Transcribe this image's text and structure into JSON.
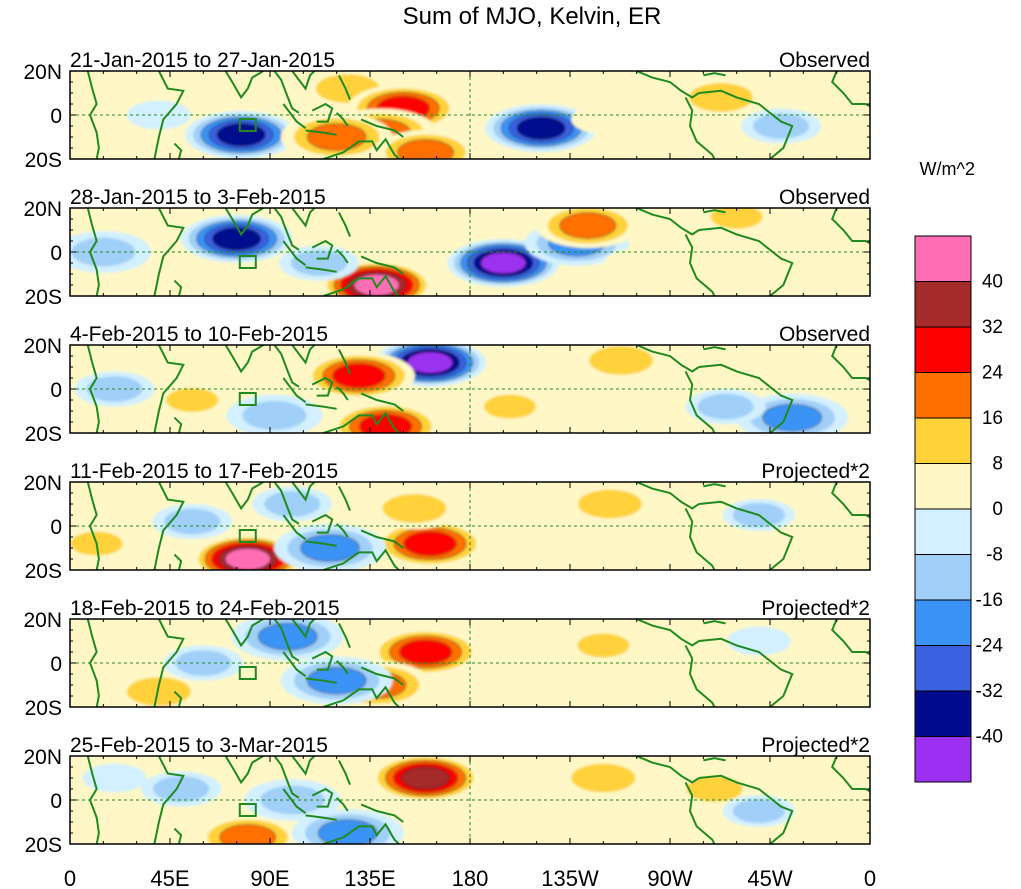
{
  "chart_data": {
    "type": "heatmap",
    "title": "Sum of MJO, Kelvin, ER",
    "x_tick_labels": [
      "0",
      "45E",
      "90E",
      "135E",
      "180",
      "135W",
      "90W",
      "45W",
      "0"
    ],
    "y_tick_labels": [
      "20N",
      "0",
      "20S"
    ],
    "xlim": [
      0,
      360
    ],
    "ylim": [
      -20,
      20
    ],
    "units": "W/m^2",
    "legend": {
      "position": "right",
      "levels": [
        "40",
        "32",
        "24",
        "16",
        "8",
        "0",
        "-8",
        "-16",
        "-24",
        "-32",
        "-40"
      ],
      "colors": [
        "#ff6eb4",
        "#a52a2a",
        "#ff0000",
        "#ff6f00",
        "#ffd23a",
        "#fff8c6",
        "#d2f0ff",
        "#a0cff8",
        "#3a93f5",
        "#3b61e0",
        "#000c8c",
        "#9b30f0"
      ]
    },
    "panels": [
      {
        "period": "21-Jan-2015 to 27-Jan-2015",
        "tag": "Observed",
        "anomalies": [
          {
            "lon": 77,
            "lat": -9,
            "value": -34
          },
          {
            "lon": 125,
            "lat": 12,
            "value": 16
          },
          {
            "lon": 150,
            "lat": 3,
            "value": 30
          },
          {
            "lon": 140,
            "lat": -8,
            "value": 24
          },
          {
            "lon": 120,
            "lat": -10,
            "value": 20
          },
          {
            "lon": 212,
            "lat": -6,
            "value": -36
          },
          {
            "lon": 240,
            "lat": -2,
            "value": 8
          },
          {
            "lon": 293,
            "lat": 8,
            "value": 16
          },
          {
            "lon": 160,
            "lat": -17,
            "value": 18
          },
          {
            "lon": 320,
            "lat": -5,
            "value": -12
          },
          {
            "lon": 40,
            "lat": 0,
            "value": -8
          }
        ]
      },
      {
        "period": "28-Jan-2015 to 3-Feb-2015",
        "tag": "Observed",
        "anomalies": [
          {
            "lon": 75,
            "lat": 6,
            "value": -34
          },
          {
            "lon": 15,
            "lat": 0,
            "value": -16
          },
          {
            "lon": 138,
            "lat": -15,
            "value": 42
          },
          {
            "lon": 195,
            "lat": -5,
            "value": -42
          },
          {
            "lon": 228,
            "lat": 4,
            "value": -18
          },
          {
            "lon": 233,
            "lat": 12,
            "value": 18
          },
          {
            "lon": 300,
            "lat": 16,
            "value": 10
          },
          {
            "lon": 255,
            "lat": -5,
            "value": 8
          },
          {
            "lon": 112,
            "lat": -5,
            "value": -12
          }
        ]
      },
      {
        "period": "4-Feb-2015 to 10-Feb-2015",
        "tag": "Observed",
        "anomalies": [
          {
            "lon": 162,
            "lat": 12,
            "value": -42
          },
          {
            "lon": 130,
            "lat": 6,
            "value": 28
          },
          {
            "lon": 142,
            "lat": -17,
            "value": 28
          },
          {
            "lon": 92,
            "lat": -12,
            "value": -16
          },
          {
            "lon": 55,
            "lat": -5,
            "value": 10
          },
          {
            "lon": 248,
            "lat": 13,
            "value": 16
          },
          {
            "lon": 325,
            "lat": -13,
            "value": -22
          },
          {
            "lon": 295,
            "lat": -8,
            "value": -12
          },
          {
            "lon": 20,
            "lat": 0,
            "value": -12
          },
          {
            "lon": 198,
            "lat": -8,
            "value": 10
          }
        ]
      },
      {
        "period": "11-Feb-2015 to 17-Feb-2015",
        "tag": "Projected*2",
        "anomalies": [
          {
            "lon": 80,
            "lat": -15,
            "value": 44
          },
          {
            "lon": 162,
            "lat": -8,
            "value": 30
          },
          {
            "lon": 155,
            "lat": 8,
            "value": 16
          },
          {
            "lon": 117,
            "lat": -10,
            "value": -24
          },
          {
            "lon": 55,
            "lat": 2,
            "value": -12
          },
          {
            "lon": 100,
            "lat": 10,
            "value": -12
          },
          {
            "lon": 243,
            "lat": 10,
            "value": 16
          },
          {
            "lon": 285,
            "lat": 0,
            "value": 8
          },
          {
            "lon": 310,
            "lat": 5,
            "value": -10
          },
          {
            "lon": 12,
            "lat": -8,
            "value": 10
          },
          {
            "lon": 205,
            "lat": -5,
            "value": 6
          }
        ]
      },
      {
        "period": "18-Feb-2015 to 24-Feb-2015",
        "tag": "Projected*2",
        "anomalies": [
          {
            "lon": 160,
            "lat": 5,
            "value": 30
          },
          {
            "lon": 138,
            "lat": -10,
            "value": 20
          },
          {
            "lon": 98,
            "lat": 12,
            "value": -20
          },
          {
            "lon": 120,
            "lat": -8,
            "value": -22
          },
          {
            "lon": 40,
            "lat": -13,
            "value": 16
          },
          {
            "lon": 60,
            "lat": 0,
            "value": -12
          },
          {
            "lon": 240,
            "lat": 8,
            "value": 10
          },
          {
            "lon": 285,
            "lat": 2,
            "value": 8
          },
          {
            "lon": 310,
            "lat": 10,
            "value": -8
          },
          {
            "lon": 215,
            "lat": -8,
            "value": 6
          }
        ]
      },
      {
        "period": "25-Feb-2015 to 3-Mar-2015",
        "tag": "Projected*2",
        "anomalies": [
          {
            "lon": 160,
            "lat": 10,
            "value": 34
          },
          {
            "lon": 80,
            "lat": -17,
            "value": 18
          },
          {
            "lon": 100,
            "lat": 0,
            "value": -16
          },
          {
            "lon": 125,
            "lat": -15,
            "value": -24
          },
          {
            "lon": 50,
            "lat": 5,
            "value": -12
          },
          {
            "lon": 240,
            "lat": 10,
            "value": 16
          },
          {
            "lon": 290,
            "lat": 5,
            "value": 12
          },
          {
            "lon": 310,
            "lat": -5,
            "value": -10
          },
          {
            "lon": 20,
            "lat": 10,
            "value": -8
          },
          {
            "lon": 200,
            "lat": 3,
            "value": 8
          }
        ]
      }
    ]
  }
}
